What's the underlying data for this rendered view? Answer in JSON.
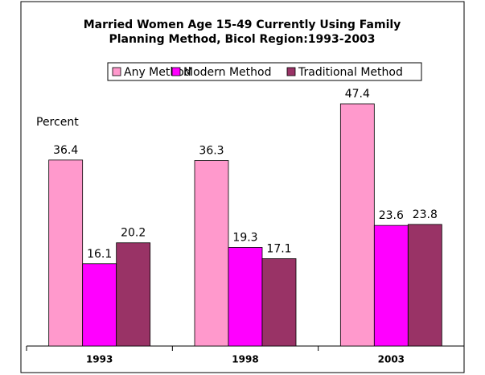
{
  "chart_data": {
    "type": "bar",
    "title": [
      "Married Women Age 15-49 Currently Using Family",
      "Planning Method, Bicol Region:1993-2003"
    ],
    "y_label": "Percent",
    "categories": [
      "1993",
      "1998",
      "2003"
    ],
    "series": [
      {
        "name": "Any Method",
        "color": "#ff99cc",
        "values": [
          36.4,
          36.3,
          47.4
        ]
      },
      {
        "name": "Modern Method",
        "color": "#ff00ff",
        "values": [
          16.1,
          19.3,
          23.6
        ]
      },
      {
        "name": "Traditional Method",
        "color": "#993366",
        "values": [
          20.2,
          17.1,
          23.8
        ]
      }
    ],
    "ylim": [
      0,
      50
    ],
    "legend": "top"
  }
}
